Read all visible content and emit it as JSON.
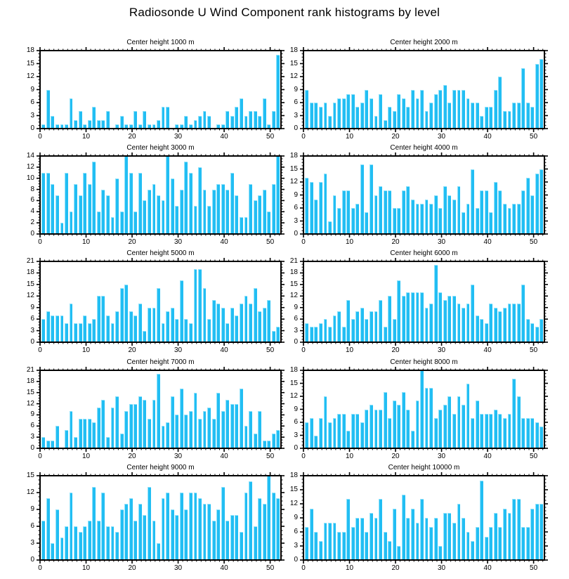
{
  "page": {
    "title": "Radiosonde U Wind Component rank histograms by level"
  },
  "colors": {
    "bar_fill": "#22BEF3",
    "bar_highlight": "#8FE2FB",
    "axis": "#000000",
    "text": "#000000"
  },
  "chart_data": [
    {
      "type": "bar",
      "title": "Center height 1000 m",
      "ylim": [
        0,
        18
      ],
      "yticks": [
        0,
        3,
        6,
        9,
        12,
        15,
        18
      ],
      "xticks": [
        0,
        10,
        20,
        30,
        40,
        50
      ],
      "values": [
        1,
        9,
        3,
        1,
        1,
        1,
        7,
        2,
        4,
        1,
        2,
        5,
        2,
        2,
        4,
        0,
        1,
        3,
        1,
        1,
        4,
        1,
        4,
        1,
        1,
        2,
        5,
        5,
        0,
        1,
        1,
        3,
        1,
        2,
        3,
        4,
        3,
        0,
        1,
        1,
        4,
        3,
        5,
        7,
        3,
        4,
        4,
        3,
        7,
        1,
        4,
        17
      ]
    },
    {
      "type": "bar",
      "title": "Center height 2000 m",
      "ylim": [
        0,
        18
      ],
      "yticks": [
        0,
        3,
        6,
        9,
        12,
        15,
        18
      ],
      "xticks": [
        0,
        10,
        20,
        30,
        40,
        50
      ],
      "values": [
        9,
        6,
        6,
        5,
        6,
        3,
        6,
        7,
        7,
        8,
        8,
        5,
        6,
        9,
        7,
        3,
        8,
        2,
        5,
        4,
        8,
        7,
        5,
        9,
        7,
        9,
        4,
        6,
        8,
        9,
        10,
        6,
        9,
        9,
        9,
        7,
        6,
        6,
        3,
        5,
        5,
        9,
        12,
        4,
        4,
        6,
        6,
        14,
        6,
        5,
        15,
        16
      ]
    },
    {
      "type": "bar",
      "title": "Center height 3000 m",
      "ylim": [
        0,
        14
      ],
      "yticks": [
        0,
        2,
        4,
        6,
        8,
        10,
        12,
        14
      ],
      "xticks": [
        0,
        10,
        20,
        30,
        40,
        50
      ],
      "values": [
        11,
        11,
        9,
        7,
        2,
        11,
        4,
        9,
        7,
        11,
        9,
        13,
        4,
        8,
        7,
        3,
        10,
        4,
        14,
        11,
        4,
        11,
        6,
        8,
        9,
        7,
        6,
        14,
        10,
        5,
        8,
        13,
        11,
        5,
        12,
        8,
        5,
        8,
        9,
        9,
        8,
        11,
        7,
        3,
        3,
        9,
        6,
        7,
        8,
        4,
        9,
        14
      ]
    },
    {
      "type": "bar",
      "title": "Center height 4000 m",
      "ylim": [
        0,
        18
      ],
      "yticks": [
        0,
        3,
        6,
        9,
        12,
        15,
        18
      ],
      "xticks": [
        0,
        10,
        20,
        30,
        40,
        50
      ],
      "values": [
        13,
        12,
        8,
        12,
        14,
        3,
        9,
        6,
        10,
        10,
        6,
        7,
        16,
        5,
        16,
        9,
        11,
        10,
        10,
        6,
        6,
        10,
        11,
        8,
        7,
        7,
        8,
        7,
        9,
        6,
        11,
        9,
        8,
        11,
        5,
        7,
        15,
        6,
        10,
        10,
        5,
        12,
        10,
        7,
        6,
        7,
        7,
        10,
        13,
        9,
        14,
        15
      ]
    },
    {
      "type": "bar",
      "title": "Center height 5000 m",
      "ylim": [
        0,
        21
      ],
      "yticks": [
        0,
        3,
        6,
        9,
        12,
        15,
        18,
        21
      ],
      "xticks": [
        0,
        10,
        20,
        30,
        40,
        50
      ],
      "values": [
        6,
        8,
        7,
        7,
        7,
        5,
        10,
        5,
        5,
        7,
        5,
        6,
        12,
        12,
        7,
        5,
        8,
        14,
        15,
        8,
        7,
        10,
        3,
        9,
        9,
        14,
        5,
        8,
        9,
        6,
        16,
        6,
        5,
        19,
        19,
        14,
        6,
        11,
        10,
        9,
        5,
        9,
        7,
        10,
        12,
        10,
        14,
        8,
        9,
        11,
        3,
        4
      ]
    },
    {
      "type": "bar",
      "title": "Center height 6000 m",
      "ylim": [
        0,
        21
      ],
      "yticks": [
        0,
        3,
        6,
        9,
        12,
        15,
        18,
        21
      ],
      "xticks": [
        0,
        10,
        20,
        30,
        40,
        50
      ],
      "values": [
        5,
        4,
        4,
        5,
        6,
        4,
        7,
        8,
        4,
        11,
        6,
        8,
        9,
        6,
        8,
        8,
        11,
        4,
        12,
        6,
        16,
        12,
        13,
        13,
        13,
        13,
        9,
        10,
        20,
        13,
        11,
        12,
        12,
        10,
        9,
        10,
        15,
        7,
        6,
        5,
        10,
        9,
        8,
        9,
        10,
        10,
        10,
        15,
        6,
        5,
        4,
        6
      ]
    },
    {
      "type": "bar",
      "title": "Center height 7000 m",
      "ylim": [
        0,
        21
      ],
      "yticks": [
        0,
        3,
        6,
        9,
        12,
        15,
        18,
        21
      ],
      "xticks": [
        0,
        10,
        20,
        30,
        40,
        50
      ],
      "values": [
        3,
        2,
        2,
        6,
        0,
        5,
        10,
        3,
        8,
        8,
        8,
        7,
        11,
        13,
        3,
        11,
        14,
        4,
        10,
        12,
        12,
        14,
        13,
        8,
        13,
        20,
        6,
        7,
        14,
        9,
        16,
        9,
        10,
        15,
        8,
        10,
        11,
        8,
        15,
        10,
        13,
        12,
        12,
        16,
        6,
        10,
        4,
        10,
        2,
        2,
        4,
        5
      ]
    },
    {
      "type": "bar",
      "title": "Center height 8000 m",
      "ylim": [
        0,
        18
      ],
      "yticks": [
        0,
        3,
        6,
        9,
        12,
        15,
        18
      ],
      "xticks": [
        0,
        10,
        20,
        30,
        40,
        50
      ],
      "values": [
        6,
        7,
        3,
        7,
        12,
        6,
        7,
        8,
        8,
        4,
        8,
        8,
        6,
        9,
        10,
        9,
        9,
        13,
        7,
        11,
        10,
        13,
        9,
        4,
        11,
        18,
        14,
        14,
        7,
        9,
        10,
        12,
        8,
        12,
        10,
        15,
        7,
        11,
        8,
        8,
        8,
        9,
        8,
        7,
        8,
        16,
        12,
        7,
        7,
        7,
        6,
        5
      ]
    },
    {
      "type": "bar",
      "title": "Center height 9000 m",
      "ylim": [
        0,
        15
      ],
      "yticks": [
        0,
        3,
        6,
        9,
        12,
        15
      ],
      "xticks": [
        0,
        10,
        20,
        30,
        40,
        50
      ],
      "values": [
        7,
        11,
        3,
        9,
        4,
        6,
        12,
        6,
        5,
        6,
        7,
        13,
        7,
        12,
        6,
        6,
        5,
        9,
        10,
        11,
        7,
        10,
        8,
        13,
        7,
        3,
        11,
        12,
        9,
        8,
        12,
        9,
        12,
        12,
        11,
        10,
        10,
        7,
        9,
        13,
        7,
        8,
        8,
        5,
        12,
        14,
        6,
        11,
        10,
        15,
        12,
        11
      ]
    },
    {
      "type": "bar",
      "title": "Center height 10000 m",
      "ylim": [
        0,
        18
      ],
      "yticks": [
        0,
        3,
        6,
        9,
        12,
        15,
        18
      ],
      "xticks": [
        0,
        10,
        20,
        30,
        40,
        50
      ],
      "values": [
        7,
        11,
        6,
        4,
        8,
        8,
        8,
        6,
        6,
        13,
        7,
        9,
        9,
        6,
        10,
        9,
        13,
        6,
        4,
        11,
        3,
        14,
        9,
        11,
        8,
        13,
        9,
        7,
        9,
        3,
        10,
        10,
        8,
        12,
        9,
        6,
        4,
        7,
        17,
        5,
        7,
        10,
        7,
        11,
        10,
        13,
        13,
        7,
        7,
        11,
        12,
        12
      ]
    }
  ]
}
